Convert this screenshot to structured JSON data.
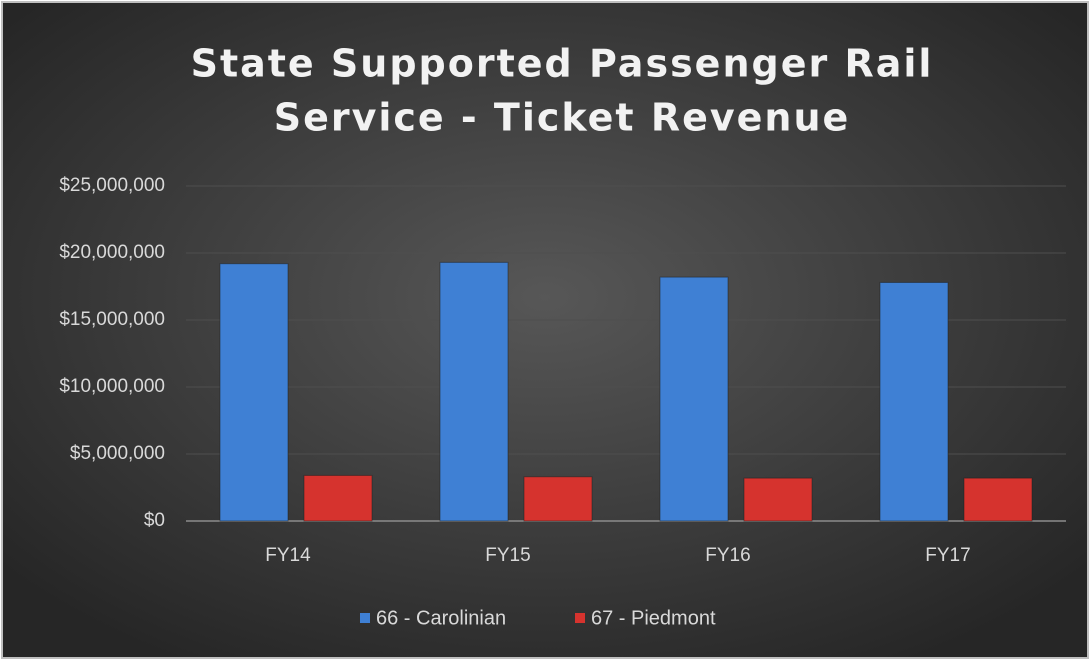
{
  "chart_data": {
    "type": "bar",
    "title": [
      "State Supported Passenger Rail",
      "Service - Ticket Revenue"
    ],
    "categories": [
      "FY14",
      "FY15",
      "FY16",
      "FY17"
    ],
    "series": [
      {
        "name": "66 - Carolinian",
        "color": "#3f80d4",
        "values": [
          19200000,
          19300000,
          18200000,
          17800000
        ]
      },
      {
        "name": "67 - Piedmont",
        "color": "#d6332e",
        "values": [
          3400000,
          3300000,
          3200000,
          3200000
        ]
      }
    ],
    "ylim": [
      0,
      25000000
    ],
    "yticks": [
      {
        "value": 0,
        "label": "$0"
      },
      {
        "value": 5000000,
        "label": "$5,000,000"
      },
      {
        "value": 10000000,
        "label": "$10,000,000"
      },
      {
        "value": 15000000,
        "label": "$15,000,000"
      },
      {
        "value": 20000000,
        "label": "$20,000,000"
      },
      {
        "value": 25000000,
        "label": "$25,000,000"
      }
    ],
    "grid": true,
    "legend": "bottom"
  }
}
